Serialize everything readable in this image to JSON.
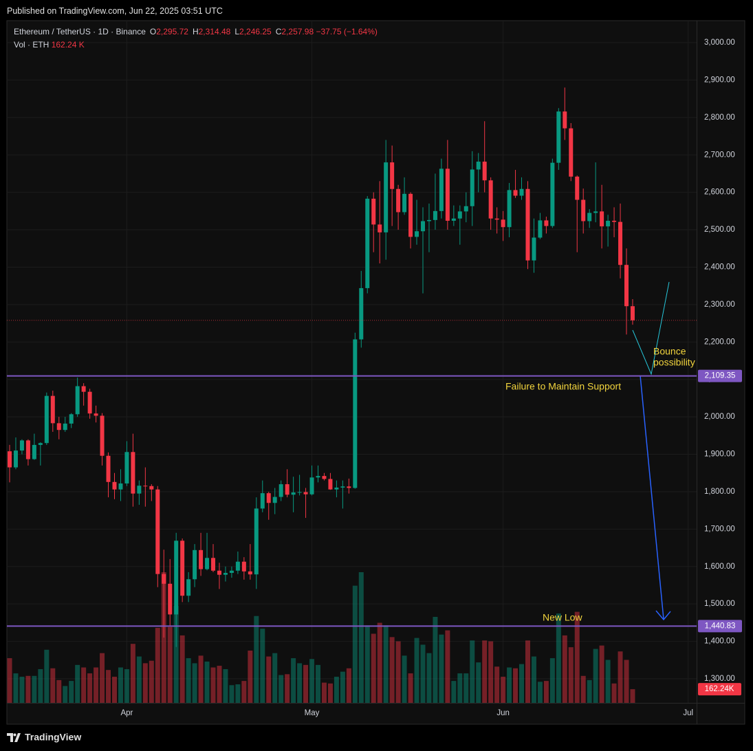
{
  "header": {
    "published": "Published on TradingView.com, Jun 22, 2025 03:51 UTC",
    "symbol": "Ethereum / TetherUS · 1D · Binance",
    "ohlc": [
      {
        "label": "O",
        "value": "2,295.72"
      },
      {
        "label": "H",
        "value": "2,314.48"
      },
      {
        "label": "L",
        "value": "2,246.25"
      },
      {
        "label": "C",
        "value": "2,257.98"
      }
    ],
    "change": "−37.75 (−1.64%)",
    "volume_name": "Vol · ETH",
    "volume_value": "162.24 K"
  },
  "footer": {
    "brand": "TradingView"
  },
  "chart_data": {
    "type": "candlestick",
    "up_color": "#089981",
    "down_color": "#f23645",
    "grid": true,
    "categories": [
      null,
      null,
      null,
      null,
      null,
      null,
      null,
      null,
      null,
      null,
      null,
      null,
      null,
      null,
      null,
      null,
      null,
      null,
      null,
      "Apr",
      null,
      null,
      null,
      null,
      null,
      null,
      null,
      null,
      null,
      null,
      null,
      null,
      null,
      null,
      null,
      null,
      null,
      null,
      null,
      null,
      null,
      null,
      null,
      null,
      null,
      null,
      null,
      null,
      null,
      "May",
      null,
      null,
      null,
      null,
      null,
      null,
      null,
      null,
      null,
      null,
      null,
      null,
      null,
      null,
      null,
      null,
      null,
      null,
      null,
      null,
      null,
      null,
      null,
      null,
      null,
      null,
      null,
      null,
      null,
      null,
      "Jun",
      null,
      null,
      null,
      null,
      null,
      null,
      null,
      null,
      null,
      null,
      null,
      null,
      null,
      null,
      null,
      null,
      null,
      null,
      null,
      null,
      null,
      null,
      null,
      null,
      null,
      null,
      null,
      null,
      null,
      "Jul"
    ],
    "open": [
      1908,
      1865,
      1910,
      1937,
      1887,
      1925,
      1930,
      2056,
      1983,
      1965,
      1982,
      2007,
      2082,
      2067,
      2009,
      2003,
      1896,
      1826,
      1806,
      1822,
      1906,
      1795,
      1816,
      1815,
      1806,
      1580,
      1554,
      1472,
      1669,
      1522,
      1566,
      1644,
      1593,
      1623,
      1589,
      1578,
      1583,
      1589,
      1613,
      1587,
      1579,
      1755,
      1796,
      1770,
      1786,
      1820,
      1792,
      1798,
      1799,
      1793,
      1838,
      1842,
      1834,
      1806,
      1811,
      1814,
      1810,
      2207,
      2344,
      2583,
      2514,
      2493,
      2680,
      2609,
      2547,
      2596,
      2481,
      2496,
      2523,
      2526,
      2550,
      2663,
      2524,
      2530,
      2549,
      2563,
      2661,
      2682,
      2632,
      2530,
      2527,
      2507,
      2606,
      2591,
      2609,
      2418,
      2479,
      2525,
      2510,
      2679,
      2816,
      2771,
      2642,
      2580,
      2523,
      2545,
      2549,
      2509,
      2524,
      2521,
      2406,
      2295.72,
      null,
      null,
      null,
      null,
      null,
      null,
      null,
      null,
      null
    ],
    "high": [
      1925,
      1945,
      1940,
      1940,
      1955,
      1932,
      2065,
      2070,
      2000,
      2000,
      2010,
      2105,
      2090,
      2075,
      2030,
      2010,
      1905,
      1850,
      1860,
      1935,
      1955,
      1830,
      1865,
      1820,
      1815,
      1645,
      1620,
      1690,
      1675,
      1585,
      1660,
      1690,
      1690,
      1660,
      1610,
      1600,
      1600,
      1640,
      1625,
      1660,
      1785,
      1830,
      1800,
      1810,
      1830,
      1860,
      1840,
      1845,
      1810,
      1870,
      1870,
      1850,
      1850,
      1830,
      1830,
      1835,
      2225,
      2390,
      2590,
      2600,
      2630,
      2740,
      2725,
      2620,
      2640,
      2600,
      2580,
      2560,
      2570,
      2650,
      2690,
      2740,
      2565,
      2565,
      2600,
      2710,
      2705,
      2790,
      2640,
      2560,
      2550,
      2625,
      2660,
      2640,
      2630,
      2530,
      2545,
      2535,
      2690,
      2825,
      2880,
      2785,
      2645,
      2610,
      2555,
      2680,
      2620,
      2540,
      2560,
      2570,
      2450,
      2314.48,
      null,
      null,
      null,
      null,
      null,
      null,
      null,
      null,
      null
    ],
    "low": [
      1825,
      1860,
      1900,
      1870,
      1885,
      1870,
      1925,
      1960,
      1940,
      1960,
      1970,
      2000,
      2030,
      1995,
      1985,
      1870,
      1785,
      1780,
      1775,
      1815,
      1760,
      1765,
      1760,
      1775,
      1545,
      1410,
      1440,
      1385,
      1505,
      1505,
      1545,
      1575,
      1590,
      1585,
      1540,
      1560,
      1570,
      1580,
      1565,
      1565,
      1540,
      1745,
      1725,
      1740,
      1775,
      1785,
      1745,
      1790,
      1730,
      1790,
      1825,
      1830,
      1805,
      1785,
      1755,
      1795,
      1808,
      2185,
      2330,
      2440,
      2410,
      2420,
      2510,
      2500,
      2540,
      2450,
      2460,
      2330,
      2440,
      2500,
      2530,
      2500,
      2510,
      2460,
      2520,
      2510,
      2600,
      2600,
      2500,
      2490,
      2470,
      2480,
      2585,
      2580,
      2395,
      2385,
      2475,
      2490,
      2505,
      2660,
      2740,
      2630,
      2440,
      2490,
      2505,
      2520,
      2450,
      2455,
      2480,
      2370,
      2220,
      2246.25,
      null,
      null,
      null,
      null,
      null,
      null,
      null,
      null,
      null
    ],
    "close": [
      1865,
      1910,
      1937,
      1887,
      1925,
      1930,
      2056,
      1983,
      1965,
      1982,
      2007,
      2082,
      2067,
      2009,
      2003,
      1896,
      1826,
      1806,
      1822,
      1906,
      1795,
      1816,
      1815,
      1806,
      1580,
      1554,
      1472,
      1669,
      1522,
      1566,
      1644,
      1593,
      1623,
      1589,
      1578,
      1583,
      1589,
      1613,
      1587,
      1579,
      1755,
      1796,
      1770,
      1786,
      1820,
      1792,
      1798,
      1799,
      1793,
      1838,
      1842,
      1834,
      1806,
      1811,
      1814,
      1810,
      2207,
      2344,
      2583,
      2514,
      2493,
      2680,
      2609,
      2547,
      2596,
      2481,
      2496,
      2523,
      2526,
      2550,
      2663,
      2524,
      2530,
      2549,
      2563,
      2661,
      2682,
      2632,
      2530,
      2527,
      2507,
      2606,
      2591,
      2609,
      2418,
      2479,
      2525,
      2510,
      2679,
      2816,
      2771,
      2642,
      2580,
      2523,
      2545,
      2549,
      2509,
      2524,
      2521,
      2406,
      2295.72,
      2257.98,
      null,
      null,
      null,
      null,
      null,
      null,
      null,
      null,
      null
    ],
    "volume": {
      "values": [
        530,
        350,
        310,
        320,
        320,
        400,
        630,
        410,
        270,
        200,
        260,
        450,
        420,
        350,
        420,
        590,
        390,
        310,
        420,
        400,
        700,
        550,
        470,
        500,
        890,
        1550,
        900,
        1150,
        800,
        530,
        470,
        560,
        490,
        420,
        440,
        400,
        210,
        220,
        260,
        620,
        1030,
        880,
        550,
        590,
        330,
        340,
        530,
        470,
        450,
        520,
        450,
        240,
        230,
        310,
        370,
        410,
        1390,
        1550,
        920,
        820,
        950,
        920,
        780,
        730,
        560,
        350,
        770,
        690,
        590,
        1020,
        810,
        860,
        260,
        350,
        350,
        740,
        480,
        740,
        730,
        430,
        310,
        420,
        410,
        460,
        740,
        550,
        250,
        260,
        530,
        1060,
        800,
        660,
        1080,
        320,
        270,
        640,
        680,
        510,
        230,
        610,
        510,
        162.24,
        null,
        null,
        null,
        null,
        null,
        null,
        null,
        null,
        null
      ],
      "last_label": "162.24K"
    },
    "ylim": [
      1235.7,
      3058.8
    ],
    "yticks": [
      {
        "value": 1300,
        "label": "1,300.00"
      },
      {
        "value": 1400,
        "label": "1,400.00"
      },
      {
        "value": 1500,
        "label": "1,500.00"
      },
      {
        "value": 1600,
        "label": "1,600.00"
      },
      {
        "value": 1700,
        "label": "1,700.00"
      },
      {
        "value": 1800,
        "label": "1,800.00"
      },
      {
        "value": 1900,
        "label": "1,900.00"
      },
      {
        "value": 2000,
        "label": "2,000.00"
      },
      {
        "value": 2100,
        "label": "2,100.00"
      },
      {
        "value": 2200,
        "label": "2,200.00"
      },
      {
        "value": 2300,
        "label": "2,300.00"
      },
      {
        "value": 2400,
        "label": "2,400.00"
      },
      {
        "value": 2500,
        "label": "2,500.00"
      },
      {
        "value": 2600,
        "label": "2,600.00"
      },
      {
        "value": 2700,
        "label": "2,700.00"
      },
      {
        "value": 2800,
        "label": "2,800.00"
      },
      {
        "value": 2900,
        "label": "2,900.00"
      },
      {
        "value": 3000,
        "label": "3,000.00"
      }
    ],
    "levels": [
      {
        "value": 2109.35,
        "label": "2,109.35",
        "color": "#7e57c2"
      },
      {
        "value": 1440.83,
        "label": "1,440.83",
        "color": "#7e57c2"
      }
    ],
    "annotations": [
      {
        "text": [
          "Bounce",
          "possibility"
        ],
        "color": "#f2d43d"
      },
      {
        "text": "Failure to Maintain Support",
        "color": "#f2d43d"
      },
      {
        "text": "New Low",
        "color": "#f2d43d"
      }
    ]
  }
}
